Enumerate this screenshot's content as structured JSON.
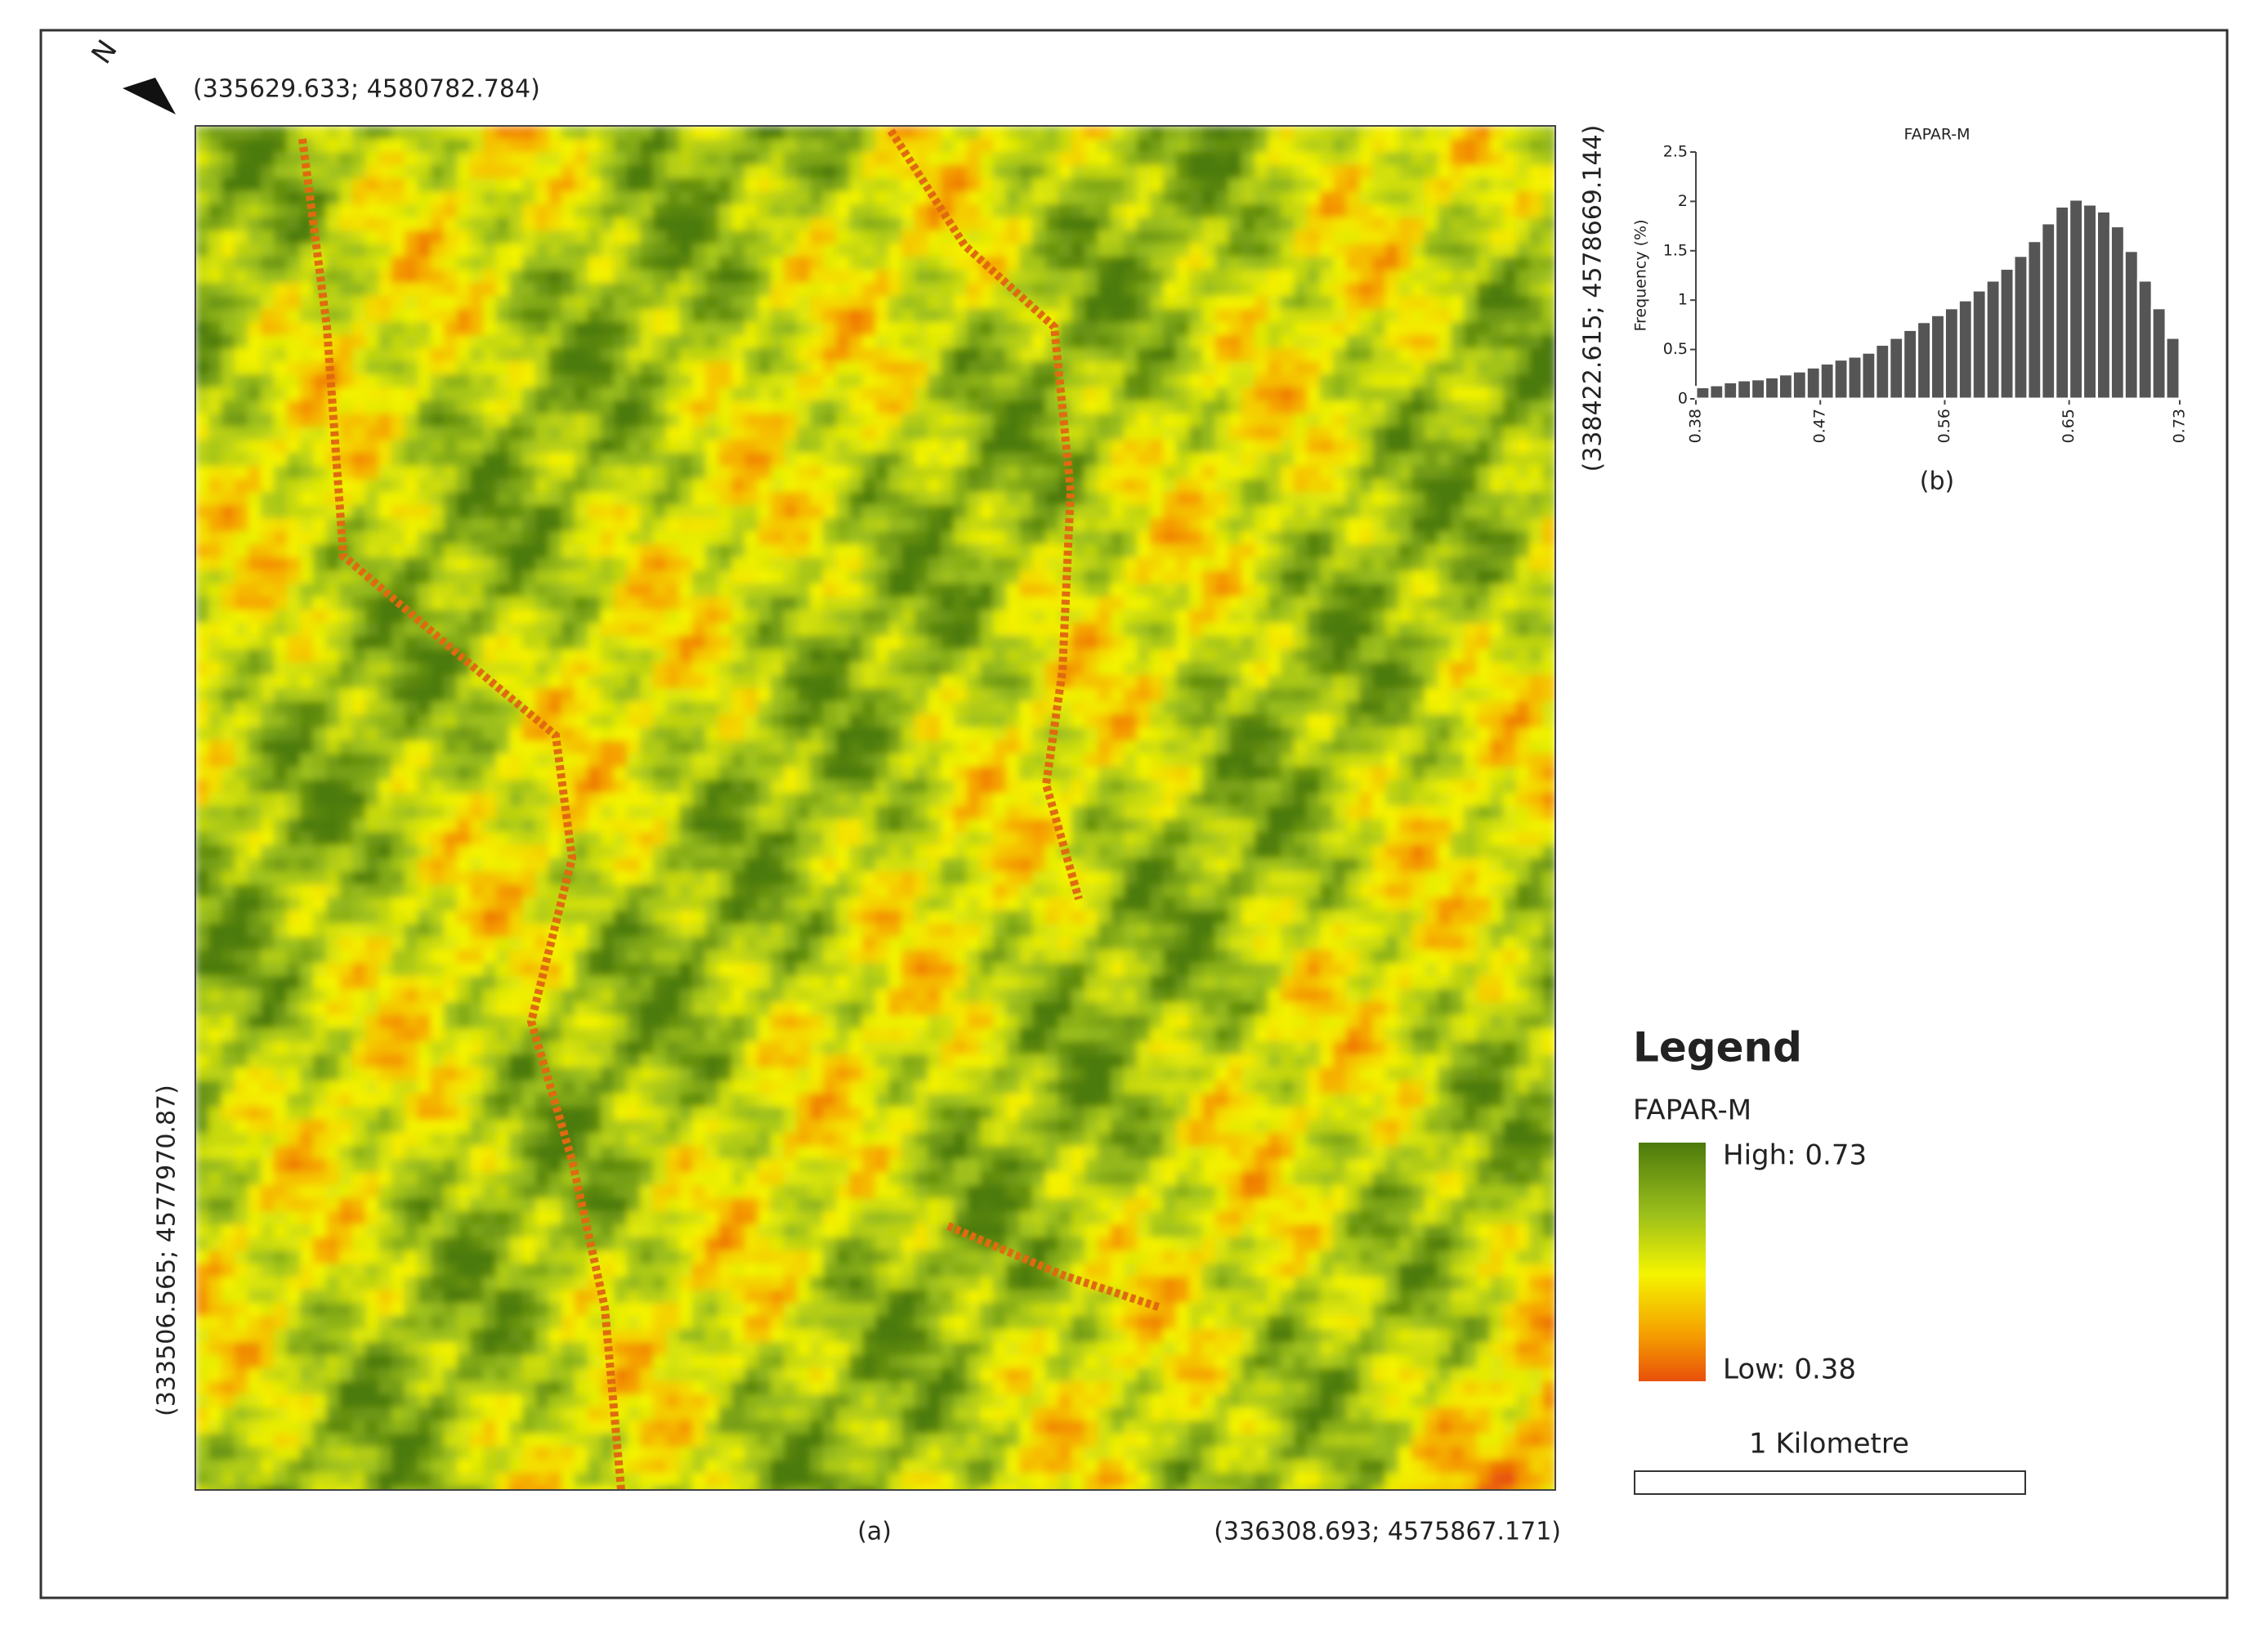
{
  "map": {
    "north": "N",
    "top_left": "(335629.633; 4580782.784)",
    "top_right": "(338422.615; 4578669.144)",
    "bottom_left": "(333506.565; 4577970.87)",
    "bottom_right": "(336308.693; 4575867.171)",
    "caption": "(a)"
  },
  "legend": {
    "title": "Legend",
    "layer": "FAPAR-M",
    "high": "High: 0.73",
    "low": "Low: 0.38",
    "scale": "1 Kilometre"
  },
  "chart_data": {
    "type": "histogram",
    "title": "FAPAR-M",
    "y_label": "Frequency (%)",
    "caption": "(b)",
    "color": "#555555",
    "bins": [
      0.38,
      0.39,
      0.4,
      0.41,
      0.42,
      0.43,
      0.44,
      0.45,
      0.46,
      0.47,
      0.48,
      0.49,
      0.5,
      0.51,
      0.52,
      0.53,
      0.54,
      0.55,
      0.56,
      0.57,
      0.58,
      0.59,
      0.6,
      0.61,
      0.62,
      0.63,
      0.64,
      0.65,
      0.66,
      0.67,
      0.68,
      0.69,
      0.7,
      0.71,
      0.72,
      0.73
    ],
    "values": [
      0.12,
      0.14,
      0.17,
      0.19,
      0.2,
      0.22,
      0.25,
      0.28,
      0.32,
      0.36,
      0.4,
      0.43,
      0.47,
      0.55,
      0.62,
      0.7,
      0.78,
      0.85,
      0.92,
      1.0,
      1.1,
      1.2,
      1.32,
      1.45,
      1.6,
      1.78,
      1.95,
      2.02,
      1.97,
      1.9,
      1.75,
      1.5,
      1.2,
      0.92,
      0.62
    ],
    "xlim": [
      0.38,
      0.73
    ],
    "xticks": [
      0.38,
      0.47,
      0.56,
      0.65,
      0.73
    ],
    "ylim": [
      0,
      2.5
    ],
    "yticks": [
      0,
      0.5,
      1,
      1.5,
      2,
      2.5
    ]
  }
}
